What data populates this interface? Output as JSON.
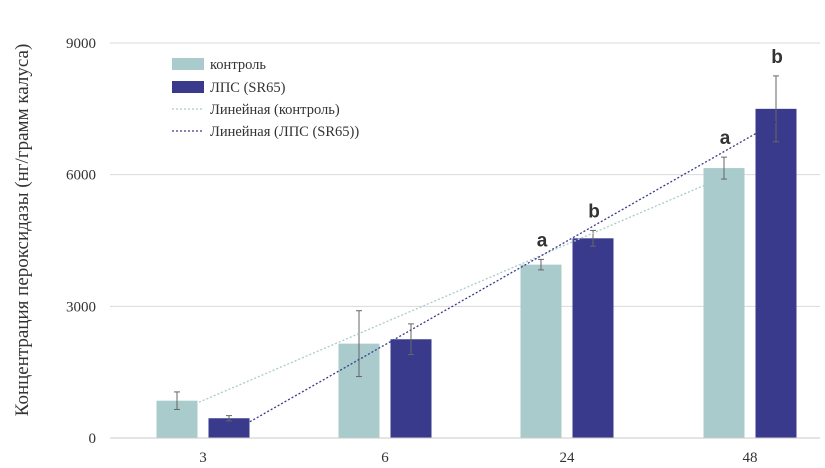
{
  "chart_data": {
    "type": "bar",
    "ylabel": "Концентрация пероксидазы (нг/грамм калуса)",
    "xlabel": "",
    "categories": [
      "3",
      "6",
      "24",
      "48"
    ],
    "ylim": [
      0,
      9000
    ],
    "yticks": [
      "0",
      "3000",
      "6000",
      "9000"
    ],
    "grid": true,
    "series": [
      {
        "name": "контроль",
        "values": [
          850,
          2150,
          3950,
          6150
        ],
        "errors": [
          200,
          750,
          120,
          250
        ],
        "color": "#A9CBCC"
      },
      {
        "name": "ЛПС (SR65)",
        "values": [
          450,
          2250,
          4550,
          7500
        ],
        "errors": [
          60,
          350,
          180,
          750
        ],
        "color": "#3A3A8C"
      }
    ],
    "trendlines": [
      {
        "name": "Линейная (контроль)",
        "series": "контроль",
        "start": 600,
        "end": 5950,
        "color": "#A9CBCC"
      },
      {
        "name": "Линейная (ЛПС (SR65))",
        "series": "ЛПС (SR65)",
        "start": 100,
        "end": 7200,
        "color": "#3A3A8C"
      }
    ],
    "annotations": [
      {
        "category": "24",
        "series": "контроль",
        "text": "a"
      },
      {
        "category": "24",
        "series": "ЛПС (SR65)",
        "text": "b"
      },
      {
        "category": "48",
        "series": "контроль",
        "text": "a"
      },
      {
        "category": "48",
        "series": "ЛПС (SR65)",
        "text": "b"
      }
    ],
    "legend": {
      "position": "top-left",
      "items": [
        "контроль",
        "ЛПС (SR65)",
        "Линейная (контроль)",
        "Линейная (ЛПС (SR65))"
      ]
    }
  }
}
